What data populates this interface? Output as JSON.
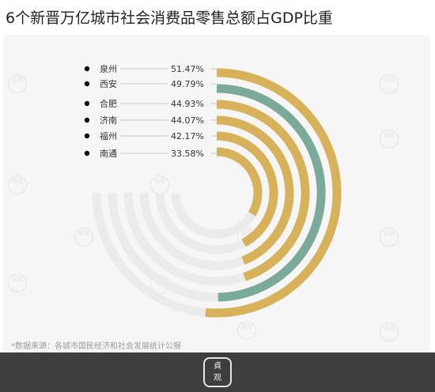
{
  "title": "6个新晋万亿城市社会消费品零售总额占GDP比重",
  "source": "*数据来源：各城市国民经济和社会发展统计公报",
  "watermark_text": "貞观",
  "colors": {
    "gold": "#d8b25a",
    "teal": "#7ba99a",
    "track": "#ebebeb",
    "background": "#f6f6f6",
    "footer": "#3e3e3e"
  },
  "chart_data": {
    "type": "radial-bar",
    "unit": "%",
    "max": 100,
    "categories": [
      "泉州",
      "西安",
      "合肥",
      "济南",
      "福州",
      "南通"
    ],
    "values": [
      51.47,
      49.79,
      44.93,
      44.07,
      42.17,
      33.58
    ],
    "labels": [
      "51.47%",
      "49.79%",
      "44.93%",
      "44.07%",
      "42.17%",
      "33.58%"
    ],
    "highlight": "西安",
    "bar_colors": [
      "gold",
      "teal",
      "gold",
      "gold",
      "gold",
      "gold"
    ]
  }
}
